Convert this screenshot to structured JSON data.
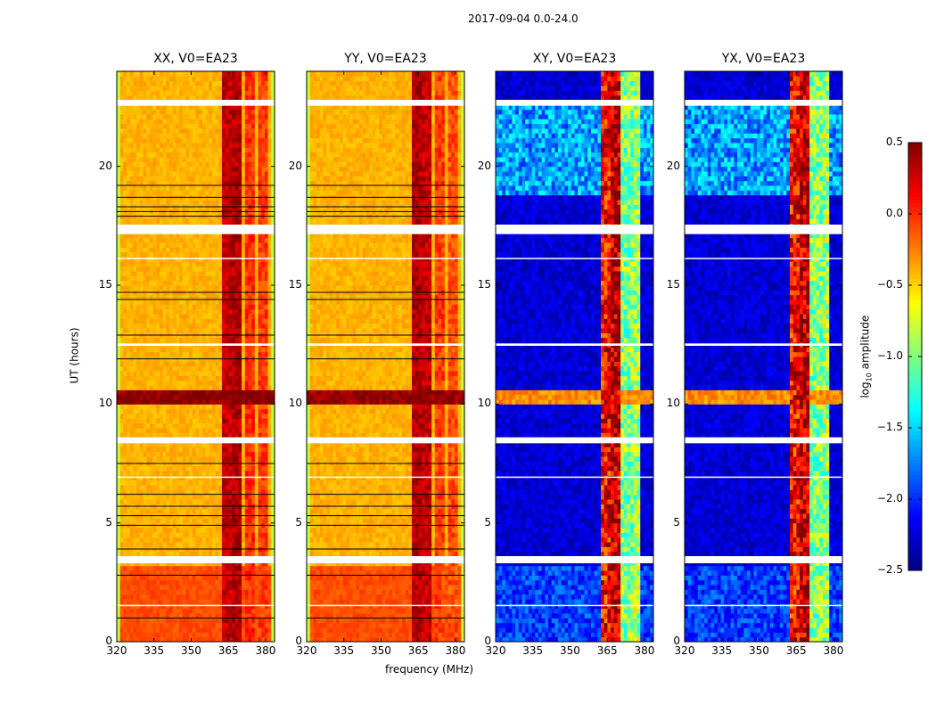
{
  "chart_data": {
    "type": "heatmap",
    "title": "2017-09-04 0.0-24.0",
    "xlabel": "frequency (MHz)",
    "ylabel": "UT (hours)",
    "xlim": [
      320,
      383.6
    ],
    "ylim": [
      0,
      24
    ],
    "xticks": [
      320,
      335,
      350,
      365,
      380
    ],
    "yticks": [
      0,
      5,
      10,
      15,
      20
    ],
    "colorbar": {
      "label": "log10 amplitude",
      "label_main": "log",
      "label_sub": "10",
      "label_rest": " amplitude",
      "range": [
        -2.5,
        0.5
      ],
      "ticks": [
        "0.5",
        "0.0",
        "−0.5",
        "−1.0",
        "−1.5",
        "−2.0",
        "−2.5"
      ],
      "tick_values": [
        0.5,
        0,
        -0.5,
        -1,
        -1.5,
        -2,
        -2.5
      ],
      "colormap": "jet"
    },
    "flagged_hours": [
      [
        22.55,
        22.8
      ],
      [
        17.15,
        17.55
      ],
      [
        8.35,
        8.6
      ],
      [
        3.3,
        3.6
      ],
      [
        12.45,
        12.55
      ],
      [
        16.1,
        16.15
      ],
      [
        1.5,
        1.55
      ],
      [
        6.9,
        6.95
      ]
    ],
    "panels": [
      {
        "title": "XX, V0=EA23",
        "kind": "auto",
        "base": -0.4,
        "early_base": -0.1,
        "rfi_band_hours": [
          10.0,
          10.7
        ],
        "rfi_level": 0.5,
        "columns": [
          {
            "mhz": [
              362,
              366
            ],
            "level": 0.3
          },
          {
            "mhz": [
              367,
              371
            ],
            "level": 0.35
          },
          {
            "mhz": [
              372,
              376
            ],
            "level": 0.0
          },
          {
            "mhz": [
              377,
              381
            ],
            "level": -0.05
          }
        ],
        "black_lines": [
          19.2,
          18.7,
          18.3,
          18.1,
          17.9,
          14.7,
          14.4,
          12.9,
          11.9,
          7.5,
          6.2,
          5.7,
          5.3,
          4.9,
          3.9,
          2.8,
          1.0
        ]
      },
      {
        "title": "YY, V0=EA23",
        "kind": "auto",
        "base": -0.4,
        "early_base": -0.1,
        "rfi_band_hours": [
          10.0,
          10.7
        ],
        "rfi_level": 0.45,
        "columns": [
          {
            "mhz": [
              362,
              366
            ],
            "level": 0.35
          },
          {
            "mhz": [
              367,
              371
            ],
            "level": 0.3
          },
          {
            "mhz": [
              372,
              376
            ],
            "level": -0.05
          },
          {
            "mhz": [
              377,
              381
            ],
            "level": -0.1
          }
        ],
        "black_lines": [
          19.2,
          18.7,
          18.3,
          18.1,
          17.9,
          14.7,
          14.4,
          12.9,
          11.9,
          7.5,
          6.2,
          5.7,
          5.3,
          4.9,
          3.9,
          2.8,
          1.0
        ]
      },
      {
        "title": "XY, V0=EA23",
        "kind": "cross",
        "base": -2.4,
        "mottled_hours": [
          18.8,
          22.8
        ],
        "rfi_band_hours": [
          10.0,
          10.7
        ],
        "rfi_level": -0.3,
        "columns": [
          {
            "mhz": [
              363,
              366
            ],
            "level": 0.1
          },
          {
            "mhz": [
              367,
              370
            ],
            "level": 0.3
          },
          {
            "mhz": [
              371,
              375
            ],
            "level": -1.0
          },
          {
            "mhz": [
              376,
              378
            ],
            "level": -0.9
          }
        ],
        "black_lines": []
      },
      {
        "title": "YX, V0=EA23",
        "kind": "cross",
        "base": -2.4,
        "mottled_hours": [
          18.8,
          22.8
        ],
        "rfi_band_hours": [
          10.0,
          10.7
        ],
        "rfi_level": -0.3,
        "columns": [
          {
            "mhz": [
              363,
              366
            ],
            "level": 0.1
          },
          {
            "mhz": [
              367,
              370
            ],
            "level": 0.3
          },
          {
            "mhz": [
              371,
              375
            ],
            "level": -1.0
          },
          {
            "mhz": [
              376,
              378
            ],
            "level": -0.9
          }
        ],
        "black_lines": []
      }
    ]
  }
}
